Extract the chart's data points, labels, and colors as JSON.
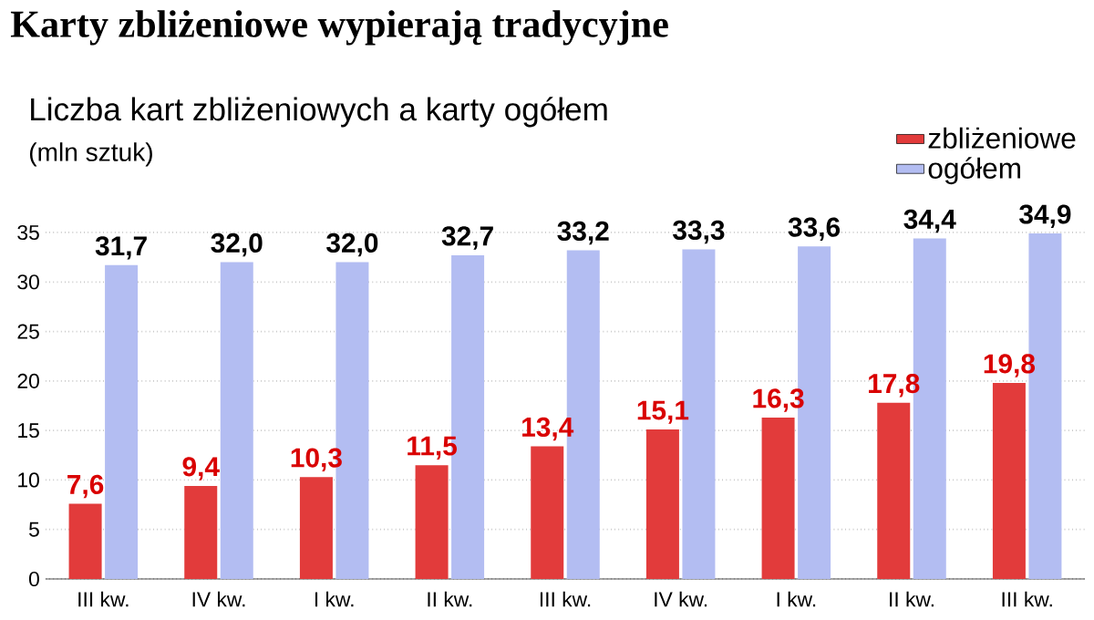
{
  "chart_data": {
    "type": "bar",
    "title": "Karty zbliżeniowe wypierają tradycyjne",
    "subtitle": "Liczba kart zbliżeniowych a karty ogółem",
    "ylabel": "(mln sztuk)",
    "categories": [
      "III kw.",
      "IV kw.",
      "I kw.",
      "II kw.",
      "III kw.",
      "IV kw.",
      "I kw.",
      "II kw.",
      "III kw."
    ],
    "series": [
      {
        "name": "zbliżeniowe",
        "color": "#e23b3b",
        "values": [
          7.6,
          9.4,
          10.3,
          11.5,
          13.4,
          15.1,
          16.3,
          17.8,
          19.8
        ],
        "value_labels": [
          "7,6",
          "9,4",
          "10,3",
          "11,5",
          "13,4",
          "15,1",
          "16,3",
          "17,8",
          "19,8"
        ]
      },
      {
        "name": "ogółem",
        "color": "#b3bdf2",
        "values": [
          31.7,
          32.0,
          32.0,
          32.7,
          33.2,
          33.3,
          33.6,
          34.4,
          34.9
        ],
        "value_labels": [
          "31,7",
          "32,0",
          "32,0",
          "32,7",
          "33,2",
          "33,3",
          "33,6",
          "34,4",
          "34,9"
        ]
      }
    ],
    "ylim": [
      0,
      35
    ],
    "yticks": [
      0,
      5,
      10,
      15,
      20,
      25,
      30,
      35
    ],
    "grid": "y",
    "legend": "top right"
  }
}
